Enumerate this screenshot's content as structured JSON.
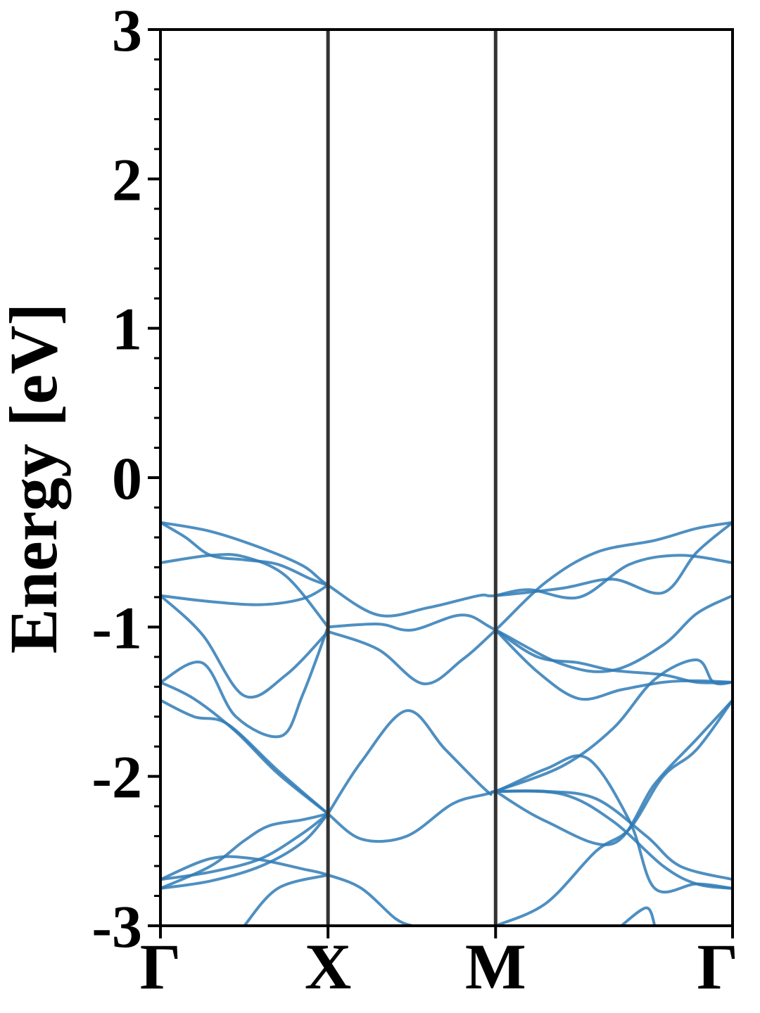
{
  "chart_data": {
    "type": "line",
    "title": "",
    "xlabel": "",
    "ylabel": "Energy [eV]",
    "ylim": [
      -3,
      3
    ],
    "y_ticks": [
      3,
      2,
      1,
      0,
      -1,
      -2,
      -3
    ],
    "y_tick_labels": [
      "3",
      "2",
      "1",
      "0",
      "-1",
      "-2",
      "-3"
    ],
    "y_minor_step": 0.2,
    "k_points": [
      {
        "label": "Γ",
        "k": 0.0
      },
      {
        "label": "X",
        "k": 1.0
      },
      {
        "label": "M",
        "k": 2.0
      },
      {
        "label": "Γ",
        "k": 3.414
      }
    ],
    "xlim": [
      0,
      3.414
    ],
    "grid": false,
    "line_color": "#2f7bb6",
    "divider_color": "#333333",
    "bands": [
      {
        "points": [
          [
            0,
            -0.3
          ],
          [
            0.3,
            -0.36
          ],
          [
            0.6,
            -0.47
          ],
          [
            0.85,
            -0.59
          ],
          [
            1.0,
            -0.72
          ],
          [
            1.3,
            -0.92
          ],
          [
            1.6,
            -0.87
          ],
          [
            1.9,
            -0.79
          ],
          [
            2.0,
            -0.79
          ],
          [
            2.4,
            -0.74
          ],
          [
            2.7,
            -0.68
          ],
          [
            3.0,
            -0.77
          ],
          [
            3.2,
            -0.5
          ],
          [
            3.414,
            -0.3
          ]
        ]
      },
      {
        "points": [
          [
            0,
            -0.3
          ],
          [
            0.15,
            -0.4
          ],
          [
            0.3,
            -0.52
          ],
          [
            0.5,
            -0.55
          ],
          [
            0.7,
            -0.58
          ],
          [
            0.9,
            -0.68
          ],
          [
            1.0,
            -0.72
          ]
        ]
      },
      {
        "points": [
          [
            0,
            -0.57
          ],
          [
            0.3,
            -0.52
          ],
          [
            0.5,
            -0.53
          ],
          [
            0.75,
            -0.66
          ],
          [
            1.0,
            -1.0
          ]
        ]
      },
      {
        "points": [
          [
            0,
            -0.79
          ],
          [
            0.3,
            -0.83
          ],
          [
            0.6,
            -0.85
          ],
          [
            0.85,
            -0.81
          ],
          [
            1.0,
            -0.72
          ]
        ]
      },
      {
        "points": [
          [
            1.0,
            -1.0
          ],
          [
            1.3,
            -0.98
          ],
          [
            1.5,
            -1.02
          ],
          [
            1.8,
            -0.92
          ],
          [
            2.0,
            -1.02
          ],
          [
            2.4,
            -1.25
          ],
          [
            2.7,
            -1.29
          ],
          [
            3.0,
            -1.12
          ],
          [
            3.2,
            -0.91
          ],
          [
            3.414,
            -0.79
          ]
        ]
      },
      {
        "points": [
          [
            1.0,
            -1.03
          ],
          [
            1.3,
            -1.15
          ],
          [
            1.57,
            -1.38
          ],
          [
            1.8,
            -1.22
          ],
          [
            2.0,
            -1.02
          ],
          [
            2.3,
            -0.7
          ],
          [
            2.6,
            -0.5
          ],
          [
            2.95,
            -0.42
          ],
          [
            3.2,
            -0.34
          ],
          [
            3.414,
            -0.3
          ]
        ]
      },
      {
        "points": [
          [
            2.0,
            -0.79
          ],
          [
            2.2,
            -0.75
          ],
          [
            2.5,
            -0.8
          ],
          [
            2.8,
            -0.58
          ],
          [
            3.1,
            -0.52
          ],
          [
            3.414,
            -0.57
          ]
        ]
      },
      {
        "points": [
          [
            2.0,
            -1.02
          ],
          [
            2.25,
            -1.2
          ],
          [
            2.5,
            -1.24
          ],
          [
            2.7,
            -1.29
          ],
          [
            3.0,
            -1.32
          ],
          [
            3.2,
            -1.37
          ],
          [
            3.414,
            -1.37
          ]
        ]
      },
      {
        "points": [
          [
            2.0,
            -1.02
          ],
          [
            2.25,
            -1.3
          ],
          [
            2.5,
            -1.48
          ],
          [
            2.75,
            -1.42
          ],
          [
            3.0,
            -1.37
          ],
          [
            3.2,
            -1.36
          ],
          [
            3.414,
            -1.37
          ]
        ]
      },
      {
        "points": [
          [
            0,
            -0.79
          ],
          [
            0.25,
            -1.05
          ],
          [
            0.5,
            -1.46
          ],
          [
            0.75,
            -1.32
          ],
          [
            1.0,
            -1.03
          ]
        ]
      },
      {
        "points": [
          [
            0,
            -1.37
          ],
          [
            0.25,
            -1.24
          ],
          [
            0.45,
            -1.6
          ],
          [
            0.72,
            -1.73
          ],
          [
            0.85,
            -1.45
          ],
          [
            1.0,
            -1.0
          ]
        ]
      },
      {
        "points": [
          [
            0,
            -1.37
          ],
          [
            0.2,
            -1.48
          ],
          [
            0.45,
            -1.7
          ],
          [
            0.7,
            -1.98
          ],
          [
            1.0,
            -2.25
          ]
        ]
      },
      {
        "points": [
          [
            0,
            -1.49
          ],
          [
            0.2,
            -1.6
          ],
          [
            0.4,
            -1.65
          ],
          [
            0.7,
            -1.96
          ],
          [
            1.0,
            -2.25
          ]
        ]
      },
      {
        "points": [
          [
            1.0,
            -2.25
          ],
          [
            1.2,
            -1.9
          ],
          [
            1.47,
            -1.56
          ],
          [
            1.7,
            -1.82
          ],
          [
            1.95,
            -2.1
          ],
          [
            2.0,
            -2.1
          ],
          [
            2.3,
            -2.1
          ],
          [
            2.6,
            -2.15
          ],
          [
            2.9,
            -2.4
          ],
          [
            3.1,
            -2.6
          ],
          [
            3.414,
            -2.69
          ]
        ]
      },
      {
        "points": [
          [
            1.0,
            -2.25
          ],
          [
            1.2,
            -2.42
          ],
          [
            1.47,
            -2.4
          ],
          [
            1.75,
            -2.18
          ],
          [
            2.0,
            -2.1
          ],
          [
            2.3,
            -1.95
          ],
          [
            2.55,
            -1.88
          ],
          [
            2.8,
            -2.3
          ],
          [
            2.95,
            -2.75
          ],
          [
            3.2,
            -2.72
          ],
          [
            3.414,
            -2.75
          ]
        ]
      },
      {
        "points": [
          [
            2.0,
            -2.1
          ],
          [
            2.4,
            -1.93
          ],
          [
            2.7,
            -1.68
          ],
          [
            2.95,
            -1.35
          ],
          [
            3.2,
            -1.22
          ],
          [
            3.3,
            -1.37
          ],
          [
            3.414,
            -1.37
          ]
        ]
      },
      {
        "points": [
          [
            2.0,
            -2.1
          ],
          [
            2.4,
            -2.12
          ],
          [
            2.7,
            -2.3
          ],
          [
            3.0,
            -2.6
          ],
          [
            3.2,
            -2.72
          ],
          [
            3.414,
            -2.75
          ]
        ]
      },
      {
        "points": [
          [
            2.0,
            -2.1
          ],
          [
            2.3,
            -2.3
          ],
          [
            2.7,
            -2.45
          ],
          [
            2.95,
            -2.05
          ],
          [
            3.2,
            -1.75
          ],
          [
            3.414,
            -1.49
          ]
        ]
      },
      {
        "points": [
          [
            0,
            -2.69
          ],
          [
            0.3,
            -2.64
          ],
          [
            0.6,
            -2.55
          ],
          [
            0.85,
            -2.38
          ],
          [
            1.0,
            -2.25
          ]
        ]
      },
      {
        "points": [
          [
            0,
            -2.75
          ],
          [
            0.3,
            -2.7
          ],
          [
            0.6,
            -2.6
          ],
          [
            0.85,
            -2.44
          ],
          [
            1.0,
            -2.25
          ]
        ]
      },
      {
        "points": [
          [
            0,
            -2.75
          ],
          [
            0.3,
            -2.6
          ],
          [
            0.5,
            -2.43
          ],
          [
            0.65,
            -2.33
          ],
          [
            0.85,
            -2.29
          ],
          [
            1.0,
            -2.25
          ]
        ]
      },
      {
        "points": [
          [
            0,
            -2.69
          ],
          [
            0.3,
            -2.55
          ],
          [
            0.55,
            -2.55
          ],
          [
            0.85,
            -2.62
          ],
          [
            1.0,
            -2.66
          ],
          [
            1.2,
            -2.75
          ],
          [
            1.4,
            -2.95
          ],
          [
            1.5,
            -3.0
          ]
        ]
      },
      {
        "points": [
          [
            0.5,
            -3.0
          ],
          [
            0.7,
            -2.75
          ],
          [
            1.0,
            -2.66
          ]
        ]
      },
      {
        "points": [
          [
            2.0,
            -3.0
          ],
          [
            2.3,
            -2.85
          ],
          [
            2.6,
            -2.5
          ],
          [
            2.8,
            -2.35
          ],
          [
            3.0,
            -2.0
          ],
          [
            3.2,
            -1.82
          ],
          [
            3.414,
            -1.49
          ]
        ]
      },
      {
        "points": [
          [
            2.75,
            -3.0
          ],
          [
            2.9,
            -2.88
          ],
          [
            2.95,
            -3.0
          ]
        ]
      }
    ]
  }
}
